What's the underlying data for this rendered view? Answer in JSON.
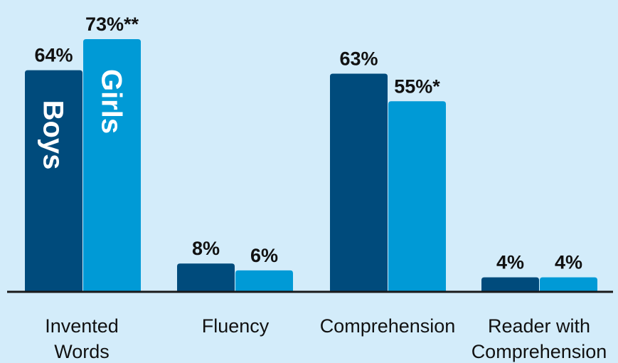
{
  "chart_data": {
    "type": "bar",
    "title": "",
    "xlabel": "",
    "ylabel": "",
    "ylim": [
      0,
      80
    ],
    "grid": false,
    "legend": "none",
    "categories": [
      [
        "Invented",
        "Words"
      ],
      [
        "Fluency"
      ],
      [
        "Comprehension"
      ],
      [
        "Reader with",
        "Comprehension"
      ]
    ],
    "series": [
      {
        "name": "Boys",
        "color": "#004b7c",
        "values": [
          64,
          8,
          63,
          4
        ],
        "labels": [
          "64%",
          "8%",
          "63%",
          "4%"
        ]
      },
      {
        "name": "Girls",
        "color": "#009ad6",
        "values": [
          73,
          6,
          55,
          4
        ],
        "labels": [
          "73%**",
          "6%",
          "55%*",
          "4%"
        ]
      }
    ],
    "axis_color": "#1a1a1a"
  }
}
